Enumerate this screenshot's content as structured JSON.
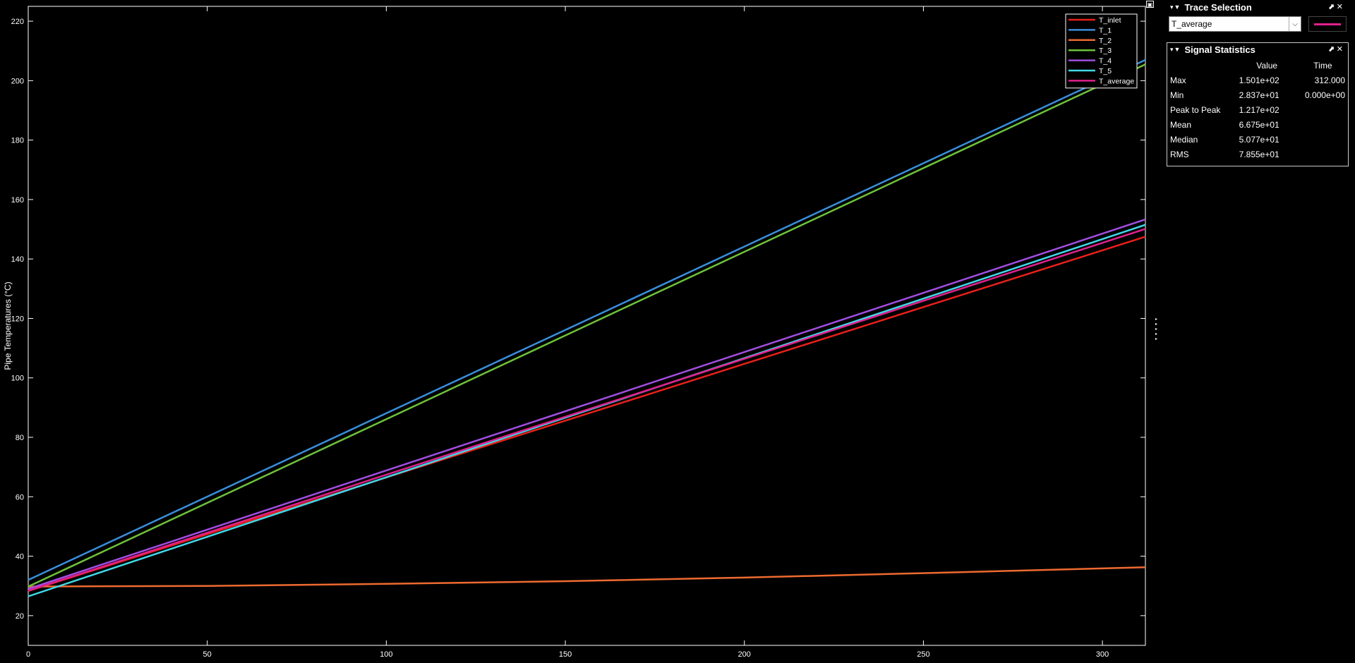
{
  "plot": {
    "ylabel": "Pipe Temperatures (°C)",
    "xlim": [
      0,
      312
    ],
    "ylim": [
      10,
      225
    ],
    "xticks": [
      0,
      50,
      100,
      150,
      200,
      250,
      300
    ],
    "yticks": [
      20,
      40,
      60,
      80,
      100,
      120,
      140,
      160,
      180,
      200,
      220
    ]
  },
  "chart_data": {
    "type": "line",
    "xlabel": "",
    "ylabel": "Pipe Temperatures (°C)",
    "xlim": [
      0,
      312
    ],
    "ylim": [
      10,
      225
    ],
    "grid": false,
    "legend_placement": "top-right",
    "series": [
      {
        "name": "T_inlet",
        "color": "#e8201a",
        "x": [
          0,
          312
        ],
        "y": [
          28.3,
          147.5
        ]
      },
      {
        "name": "T_1",
        "color": "#3a8edb",
        "x": [
          0,
          312
        ],
        "y": [
          32.0,
          207.0
        ]
      },
      {
        "name": "T_2",
        "color": "#ee6a30",
        "x": [
          0,
          50,
          100,
          150,
          200,
          250,
          312
        ],
        "y": [
          29.8,
          30.0,
          30.7,
          31.6,
          32.8,
          34.3,
          36.3
        ]
      },
      {
        "name": "T_3",
        "color": "#6ec23a",
        "x": [
          0,
          312
        ],
        "y": [
          29.8,
          205.5
        ]
      },
      {
        "name": "T_4",
        "color": "#a04ee0",
        "x": [
          0,
          312
        ],
        "y": [
          29.0,
          153.3
        ]
      },
      {
        "name": "T_5",
        "color": "#40d8e8",
        "x": [
          0,
          312
        ],
        "y": [
          26.5,
          151.5
        ]
      },
      {
        "name": "T_average",
        "color": "#e0208e",
        "x": [
          0,
          312
        ],
        "y": [
          28.4,
          150.1
        ]
      }
    ]
  },
  "trace_panel": {
    "title": "Trace Selection",
    "selected": "T_average",
    "swatch_color": "#e0208e"
  },
  "stats_panel": {
    "title": "Signal Statistics",
    "headers": [
      "",
      "Value",
      "Time"
    ],
    "rows": [
      {
        "label": "Max",
        "value": "1.501e+02",
        "time": "312.000"
      },
      {
        "label": "Min",
        "value": "2.837e+01",
        "time": "0.000e+00"
      },
      {
        "label": "Peak to Peak",
        "value": "1.217e+02",
        "time": ""
      },
      {
        "label": "Mean",
        "value": "6.675e+01",
        "time": ""
      },
      {
        "label": "Median",
        "value": "5.077e+01",
        "time": ""
      },
      {
        "label": "RMS",
        "value": "7.855e+01",
        "time": ""
      }
    ]
  }
}
